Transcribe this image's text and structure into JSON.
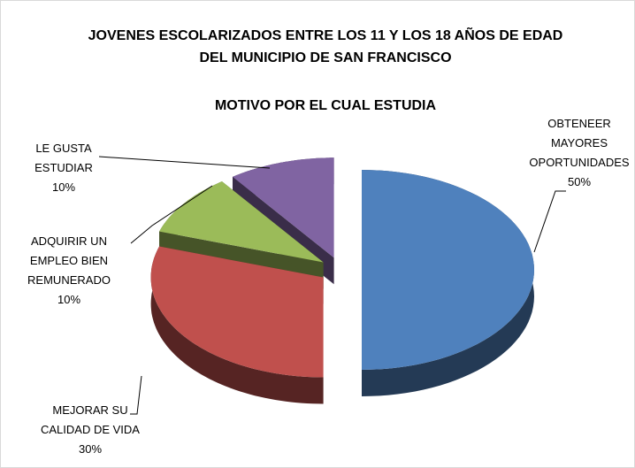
{
  "chart_data": {
    "type": "pie",
    "title": [
      "JOVENES ESCOLARIZADOS ENTRE LOS 11 Y LOS 18 AÑOS DE EDAD",
      "DEL MUNICIPIO DE SAN FRANCISCO"
    ],
    "subtitle": "MOTIVO POR EL CUAL ESTUDIA",
    "categories": [
      "OBTENEER MAYORES OPORTUNIDADES",
      "MEJORAR SU CALIDAD DE VIDA",
      "ADQUIRIR UN EMPLEO BIEN REMUNERADO",
      "LE GUSTA ESTUDIAR"
    ],
    "values": [
      50,
      30,
      10,
      10
    ],
    "value_labels": [
      "50%",
      "30%",
      "10%",
      "10%"
    ],
    "colors": [
      "#4f81bd",
      "#c0504d",
      "#9bbb59",
      "#8064a2"
    ]
  }
}
